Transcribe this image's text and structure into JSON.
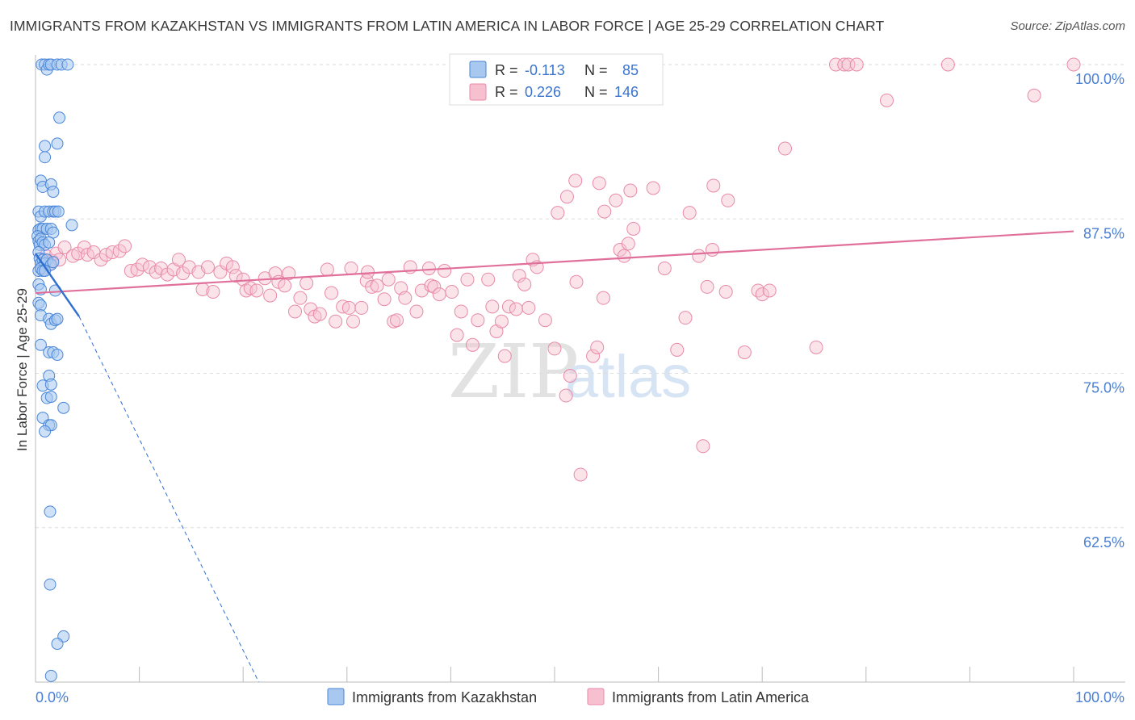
{
  "title": "IMMIGRANTS FROM KAZAKHSTAN VS IMMIGRANTS FROM LATIN AMERICA IN LABOR FORCE | AGE 25-29 CORRELATION CHART",
  "source": "Source: ZipAtlas.com",
  "watermark": {
    "zip": "ZIP",
    "atlas": "atlas"
  },
  "legend_stats": [
    {
      "r_label": "R =",
      "r_value": "-0.113",
      "n_label": "N =",
      "n_value": "85"
    },
    {
      "r_label": "R =",
      "r_value": "0.226",
      "n_label": "N =",
      "n_value": "146"
    }
  ],
  "colors": {
    "kazakhstan_fill": "#a8c8f0",
    "kazakhstan_stroke": "#4a86d8",
    "kazakhstan_line": "#2e6fd0",
    "latin_fill": "#f7c0d0",
    "latin_stroke": "#e88aa8",
    "latin_line": "#e0709a",
    "tick_label": "#4a7fd4",
    "grid": "#dddddd"
  },
  "chart_data": {
    "type": "scatter",
    "title": "IMMIGRANTS FROM KAZAKHSTAN VS IMMIGRANTS FROM LATIN AMERICA IN LABOR FORCE | AGE 25-29 CORRELATION CHART",
    "xlabel": "",
    "ylabel": "In Labor Force | Age 25-29",
    "xlim": [
      0,
      100
    ],
    "ylim": [
      50,
      100
    ],
    "x_tick_labels": [
      "0.0%",
      "100.0%"
    ],
    "y_tick_labels": [
      "100.0%",
      "87.5%",
      "75.0%",
      "62.5%"
    ],
    "y_ticks": [
      100,
      87.5,
      75,
      62.5
    ],
    "grid": true,
    "legend_position": "bottom",
    "series": [
      {
        "name": "Immigrants from Kazakhstan",
        "r": -0.113,
        "n": 85,
        "trend": {
          "x": [
            0,
            4.2
          ],
          "y": [
            84.7,
            79.6
          ],
          "dashed_to": [
            21.5,
            50.0
          ]
        },
        "points": [
          [
            0.6,
            100
          ],
          [
            0.9,
            100
          ],
          [
            1.1,
            99.6
          ],
          [
            1.3,
            100
          ],
          [
            1.5,
            100
          ],
          [
            2.1,
            100
          ],
          [
            2.5,
            100
          ],
          [
            3.1,
            100
          ],
          [
            2.3,
            95.7
          ],
          [
            2.1,
            93.6
          ],
          [
            0.9,
            92.5
          ],
          [
            0.9,
            93.4
          ],
          [
            0.5,
            90.6
          ],
          [
            0.7,
            90.1
          ],
          [
            1.5,
            90.3
          ],
          [
            1.7,
            89.7
          ],
          [
            0.3,
            88.1
          ],
          [
            0.5,
            87.7
          ],
          [
            0.9,
            88.1
          ],
          [
            1.3,
            88.1
          ],
          [
            1.7,
            88.1
          ],
          [
            1.9,
            88.1
          ],
          [
            2.2,
            88.1
          ],
          [
            3.5,
            87.0
          ],
          [
            0.3,
            86.6
          ],
          [
            0.5,
            86.7
          ],
          [
            0.7,
            86.7
          ],
          [
            1.1,
            86.7
          ],
          [
            1.5,
            86.7
          ],
          [
            1.7,
            86.4
          ],
          [
            0.2,
            86.1
          ],
          [
            0.3,
            85.7
          ],
          [
            0.4,
            85.4
          ],
          [
            0.5,
            85.9
          ],
          [
            0.7,
            85.6
          ],
          [
            0.9,
            85.4
          ],
          [
            1.3,
            85.6
          ],
          [
            0.3,
            84.8
          ],
          [
            0.4,
            84.3
          ],
          [
            0.5,
            83.9
          ],
          [
            0.7,
            84.2
          ],
          [
            0.9,
            83.9
          ],
          [
            1.1,
            84.2
          ],
          [
            1.5,
            83.8
          ],
          [
            1.7,
            84.0
          ],
          [
            0.3,
            83.3
          ],
          [
            0.5,
            83.5
          ],
          [
            0.7,
            83.3
          ],
          [
            0.9,
            83.3
          ],
          [
            0.3,
            82.2
          ],
          [
            0.5,
            81.8
          ],
          [
            1.9,
            81.7
          ],
          [
            0.3,
            80.7
          ],
          [
            0.5,
            80.5
          ],
          [
            0.5,
            79.7
          ],
          [
            1.3,
            79.4
          ],
          [
            1.5,
            79.0
          ],
          [
            1.9,
            79.3
          ],
          [
            2.1,
            79.4
          ],
          [
            0.5,
            77.3
          ],
          [
            1.3,
            76.7
          ],
          [
            1.7,
            76.7
          ],
          [
            2.1,
            76.5
          ],
          [
            1.3,
            74.8
          ],
          [
            0.7,
            74.0
          ],
          [
            1.5,
            74.1
          ],
          [
            1.1,
            73.0
          ],
          [
            1.5,
            73.1
          ],
          [
            2.7,
            72.2
          ],
          [
            0.7,
            71.4
          ],
          [
            1.3,
            70.8
          ],
          [
            1.5,
            70.8
          ],
          [
            0.9,
            70.3
          ],
          [
            1.4,
            63.8
          ],
          [
            1.4,
            57.9
          ],
          [
            2.7,
            53.7
          ],
          [
            2.1,
            53.1
          ],
          [
            1.5,
            50.5
          ]
        ]
      },
      {
        "name": "Immigrants from Latin America",
        "r": 0.226,
        "n": 146,
        "trend": {
          "x": [
            0,
            100
          ],
          "y": [
            81.5,
            86.5
          ]
        },
        "points": [
          [
            0.6,
            83.5
          ],
          [
            0.8,
            84.2
          ],
          [
            1.0,
            84.5
          ],
          [
            1.3,
            83.8
          ],
          [
            1.6,
            84.1
          ],
          [
            2.0,
            84.7
          ],
          [
            2.3,
            84.2
          ],
          [
            2.8,
            85.2
          ],
          [
            3.6,
            84.5
          ],
          [
            4.1,
            84.7
          ],
          [
            4.7,
            85.2
          ],
          [
            5.0,
            84.6
          ],
          [
            5.6,
            84.8
          ],
          [
            6.3,
            84.2
          ],
          [
            6.8,
            84.6
          ],
          [
            7.4,
            84.8
          ],
          [
            8.1,
            84.9
          ],
          [
            8.6,
            85.3
          ],
          [
            9.2,
            83.3
          ],
          [
            9.8,
            83.4
          ],
          [
            10.3,
            83.8
          ],
          [
            11.0,
            83.6
          ],
          [
            11.6,
            83.2
          ],
          [
            12.1,
            83.5
          ],
          [
            12.7,
            83.0
          ],
          [
            13.3,
            83.4
          ],
          [
            13.8,
            84.2
          ],
          [
            14.2,
            83.1
          ],
          [
            14.8,
            83.6
          ],
          [
            15.7,
            83.2
          ],
          [
            16.1,
            81.8
          ],
          [
            16.6,
            83.6
          ],
          [
            17.1,
            81.6
          ],
          [
            17.8,
            83.2
          ],
          [
            18.4,
            83.9
          ],
          [
            19.0,
            83.6
          ],
          [
            19.3,
            82.9
          ],
          [
            20.0,
            82.6
          ],
          [
            20.3,
            81.7
          ],
          [
            20.7,
            81.9
          ],
          [
            21.3,
            81.7
          ],
          [
            22.1,
            82.7
          ],
          [
            22.6,
            81.3
          ],
          [
            23.1,
            83.1
          ],
          [
            23.4,
            82.4
          ],
          [
            24.0,
            82.1
          ],
          [
            24.4,
            83.1
          ],
          [
            25.0,
            80.0
          ],
          [
            25.5,
            81.1
          ],
          [
            26.1,
            82.3
          ],
          [
            26.5,
            80.2
          ],
          [
            26.9,
            79.6
          ],
          [
            27.4,
            79.8
          ],
          [
            28.1,
            83.4
          ],
          [
            28.5,
            81.5
          ],
          [
            28.9,
            79.2
          ],
          [
            29.6,
            80.4
          ],
          [
            30.2,
            80.3
          ],
          [
            30.4,
            83.5
          ],
          [
            30.6,
            79.2
          ],
          [
            31.4,
            80.3
          ],
          [
            31.9,
            82.5
          ],
          [
            32.0,
            83.2
          ],
          [
            32.4,
            82.0
          ],
          [
            32.9,
            82.1
          ],
          [
            33.6,
            81.0
          ],
          [
            34.0,
            82.6
          ],
          [
            34.5,
            79.2
          ],
          [
            34.8,
            79.3
          ],
          [
            35.2,
            81.9
          ],
          [
            35.6,
            81.1
          ],
          [
            36.1,
            83.6
          ],
          [
            36.7,
            80.0
          ],
          [
            37.2,
            81.7
          ],
          [
            37.9,
            83.5
          ],
          [
            38.1,
            82.1
          ],
          [
            38.4,
            82.0
          ],
          [
            38.9,
            81.4
          ],
          [
            39.4,
            83.3
          ],
          [
            40.1,
            81.6
          ],
          [
            40.6,
            78.1
          ],
          [
            41.0,
            80.0
          ],
          [
            41.6,
            82.6
          ],
          [
            42.1,
            77.3
          ],
          [
            42.6,
            79.3
          ],
          [
            43.6,
            82.6
          ],
          [
            44.0,
            80.4
          ],
          [
            44.4,
            78.4
          ],
          [
            44.9,
            79.2
          ],
          [
            45.2,
            76.4
          ],
          [
            45.6,
            80.4
          ],
          [
            46.3,
            80.2
          ],
          [
            46.6,
            82.9
          ],
          [
            47.1,
            82.2
          ],
          [
            47.5,
            80.3
          ],
          [
            47.9,
            84.2
          ],
          [
            48.3,
            83.6
          ],
          [
            49.1,
            79.3
          ],
          [
            50.0,
            77.0
          ],
          [
            50.3,
            88.0
          ],
          [
            51.1,
            73.2
          ],
          [
            51.2,
            89.3
          ],
          [
            51.5,
            74.8
          ],
          [
            52.0,
            90.6
          ],
          [
            52.1,
            82.4
          ],
          [
            52.5,
            66.8
          ],
          [
            53.7,
            76.4
          ],
          [
            54.1,
            77.1
          ],
          [
            54.3,
            90.4
          ],
          [
            54.7,
            81.1
          ],
          [
            54.8,
            88.1
          ],
          [
            55.9,
            89.0
          ],
          [
            56.3,
            85.0
          ],
          [
            56.7,
            84.5
          ],
          [
            57.1,
            85.5
          ],
          [
            57.3,
            89.8
          ],
          [
            57.6,
            86.7
          ],
          [
            59.0,
            98.4
          ],
          [
            59.5,
            90.0
          ],
          [
            60.6,
            83.5
          ],
          [
            61.8,
            76.9
          ],
          [
            62.6,
            79.5
          ],
          [
            63.0,
            88.0
          ],
          [
            63.9,
            84.5
          ],
          [
            64.3,
            69.1
          ],
          [
            64.7,
            82.0
          ],
          [
            65.2,
            85.0
          ],
          [
            65.3,
            90.2
          ],
          [
            66.5,
            81.6
          ],
          [
            66.7,
            89.0
          ],
          [
            68.3,
            76.7
          ],
          [
            69.6,
            81.7
          ],
          [
            70.0,
            81.4
          ],
          [
            70.7,
            81.7
          ],
          [
            72.2,
            93.2
          ],
          [
            75.2,
            77.1
          ],
          [
            77.1,
            100
          ],
          [
            77.9,
            100
          ],
          [
            78.3,
            100
          ],
          [
            79.1,
            100
          ],
          [
            87.9,
            100
          ],
          [
            100,
            100
          ],
          [
            96.2,
            97.5
          ],
          [
            82.0,
            97.1
          ]
        ]
      }
    ]
  }
}
